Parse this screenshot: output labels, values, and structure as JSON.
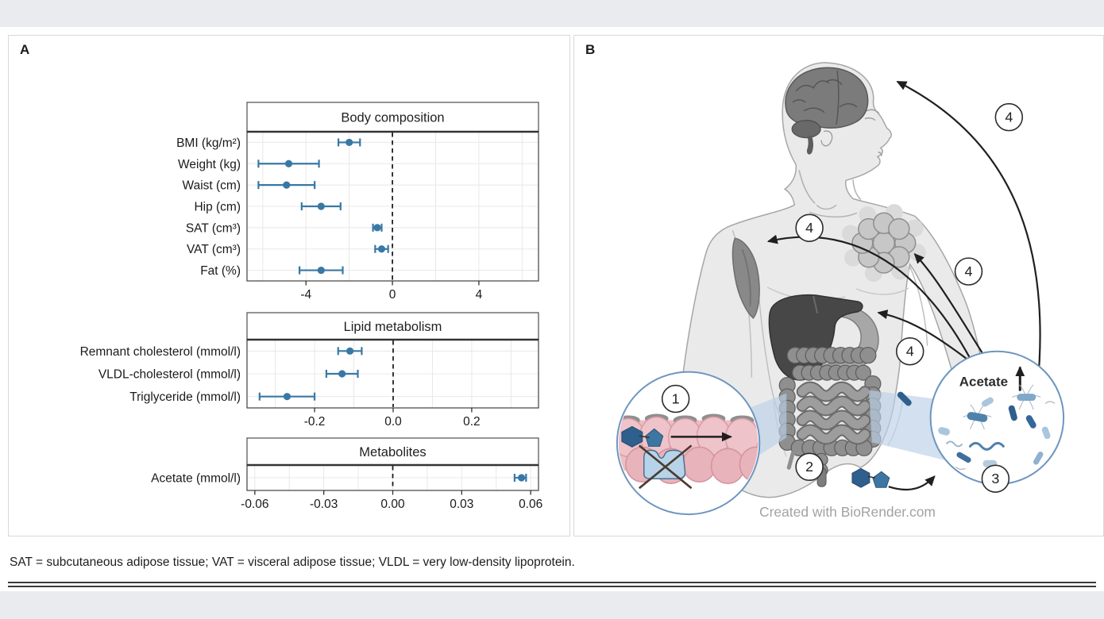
{
  "page": {
    "caption": "SAT = subcutaneous adipose tissue; VAT = visceral adipose tissue; VLDL = very low-density lipoprotein."
  },
  "panel_a": {
    "label": "A"
  },
  "panel_b": {
    "label": "B",
    "acetate_label": "Acetate",
    "credit": "Created with BioRender.com",
    "steps": {
      "s1": "1",
      "s2": "2",
      "s3": "3",
      "s4": "4"
    }
  },
  "colors": {
    "point_blue": "#3878a5",
    "callout_border": "#6e96bf",
    "cone_blue": "#bad0e6",
    "epithelium_pink": "#eec3c9",
    "sugar_dark_blue": "#2f5f8d",
    "sugar_mid_blue": "#3d76a3",
    "enzyme_light_blue": "#b7d3e9",
    "band_gray": "#e9ebef"
  },
  "chart_data": [
    {
      "type": "scatter",
      "title": "Body composition",
      "orientation": "horizontal-forest",
      "rows": [
        {
          "label": "BMI (kg/m²)",
          "estimate": -2.0,
          "ci_low": -2.5,
          "ci_high": -1.5
        },
        {
          "label": "Weight (kg)",
          "estimate": -4.8,
          "ci_low": -6.2,
          "ci_high": -3.4
        },
        {
          "label": "Waist (cm)",
          "estimate": -4.9,
          "ci_low": -6.2,
          "ci_high": -3.6
        },
        {
          "label": "Hip (cm)",
          "estimate": -3.3,
          "ci_low": -4.2,
          "ci_high": -2.4
        },
        {
          "label": "SAT (cm³)",
          "estimate": -0.7,
          "ci_low": -0.9,
          "ci_high": -0.5
        },
        {
          "label": "VAT (cm³)",
          "estimate": -0.5,
          "ci_low": -0.8,
          "ci_high": -0.2
        },
        {
          "label": "Fat (%)",
          "estimate": -3.3,
          "ci_low": -4.3,
          "ci_high": -2.3
        }
      ],
      "xlim": [
        -6.73,
        6.76
      ],
      "xticks": [
        -4,
        0,
        4
      ],
      "xtick_labels": [
        "-4",
        "0",
        "4"
      ],
      "minor_step": 2,
      "zero_reference_line": true,
      "grid": true
    },
    {
      "type": "scatter",
      "title": "Lipid metabolism",
      "orientation": "horizontal-forest",
      "rows": [
        {
          "label": "Remnant cholesterol (mmol/l)",
          "estimate": -0.11,
          "ci_low": -0.14,
          "ci_high": -0.08
        },
        {
          "label": "VLDL-cholesterol (mmol/l)",
          "estimate": -0.13,
          "ci_low": -0.17,
          "ci_high": -0.09
        },
        {
          "label": "Triglyceride (mmol/l)",
          "estimate": -0.27,
          "ci_low": -0.34,
          "ci_high": -0.2
        }
      ],
      "xlim": [
        -0.372,
        0.37
      ],
      "xticks": [
        -0.2,
        0.0,
        0.2
      ],
      "xtick_labels": [
        "-0.2",
        "0.0",
        "0.2"
      ],
      "minor_step": 0.1,
      "zero_reference_line": true,
      "grid": true
    },
    {
      "type": "scatter",
      "title": "Metabolites",
      "orientation": "horizontal-forest",
      "rows": [
        {
          "label": "Acetate (mmol/l)",
          "estimate": 0.056,
          "ci_low": 0.053,
          "ci_high": 0.058
        }
      ],
      "xlim": [
        -0.0634,
        0.0634
      ],
      "xticks": [
        -0.06,
        -0.03,
        0.0,
        0.03,
        0.06
      ],
      "xtick_labels": [
        "-0.06",
        "-0.03",
        "0.00",
        "0.03",
        "0.06"
      ],
      "minor_step": 0.015,
      "zero_reference_line": true,
      "grid": true
    }
  ]
}
